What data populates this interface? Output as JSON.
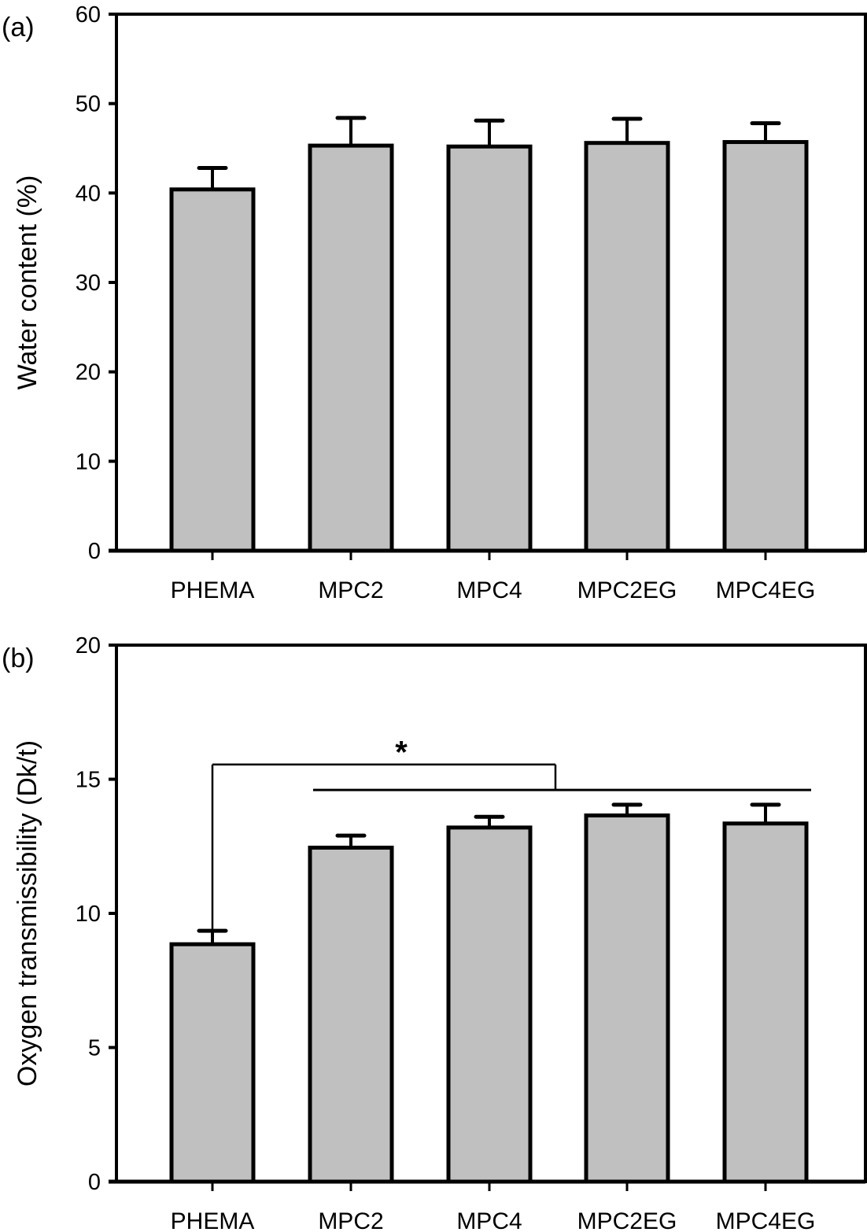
{
  "chart_data": [
    {
      "type": "bar",
      "panel_label": "(a)",
      "title": "",
      "xlabel": "",
      "ylabel": "Water content (%)",
      "ylim": [
        0,
        60
      ],
      "yticks": [
        0,
        10,
        20,
        30,
        40,
        50,
        60
      ],
      "grid": false,
      "categories": [
        "PHEMA",
        "MPC2",
        "MPC4",
        "MPC2EG",
        "MPC4EG"
      ],
      "values": [
        40.4,
        45.3,
        45.2,
        45.6,
        45.7
      ],
      "error_upper": [
        2.4,
        3.1,
        2.9,
        2.7,
        2.1
      ],
      "bar_color": "#c0c0c0",
      "annotations": []
    },
    {
      "type": "bar",
      "panel_label": "(b)",
      "title": "",
      "xlabel": "",
      "ylabel": "Oxygen transmissibility (Dk/t)",
      "ylim": [
        0,
        20
      ],
      "yticks": [
        0,
        5,
        10,
        15,
        20
      ],
      "grid": false,
      "categories": [
        "PHEMA",
        "MPC2",
        "MPC4",
        "MPC2EG",
        "MPC4EG"
      ],
      "values": [
        8.85,
        12.45,
        13.2,
        13.65,
        13.35
      ],
      "error_upper": [
        0.5,
        0.45,
        0.4,
        0.4,
        0.7
      ],
      "bar_color": "#c0c0c0",
      "annotations": [
        {
          "type": "significance-bracket",
          "text": "*",
          "from_category": "PHEMA",
          "to_categories": [
            "MPC2",
            "MPC4",
            "MPC2EG",
            "MPC4EG"
          ],
          "bracket_y": 15.55,
          "group_line_y": 14.6
        }
      ]
    }
  ]
}
